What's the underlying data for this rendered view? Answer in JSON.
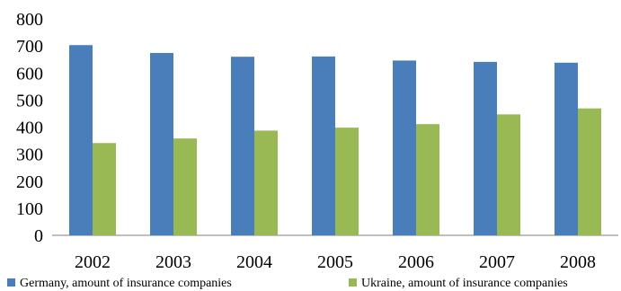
{
  "chart_data": {
    "type": "bar",
    "title": "",
    "xlabel": "",
    "ylabel": "",
    "categories": [
      "2002",
      "2003",
      "2004",
      "2005",
      "2006",
      "2007",
      "2008"
    ],
    "ylim": [
      0,
      800
    ],
    "yticks": [
      "0",
      "100",
      "200",
      "300",
      "400",
      "500",
      "600",
      "700",
      "800"
    ],
    "grid": false,
    "legend_position": "bottom",
    "series": [
      {
        "name": "Germany, amount of insurance companies",
        "color": "#4a7ebb",
        "values": [
          703,
          674,
          660,
          661,
          646,
          641,
          638
        ]
      },
      {
        "name": "Ukraine, amount of insurance companies",
        "color": "#98b954",
        "values": [
          341,
          358,
          387,
          398,
          411,
          447,
          469
        ]
      }
    ]
  }
}
